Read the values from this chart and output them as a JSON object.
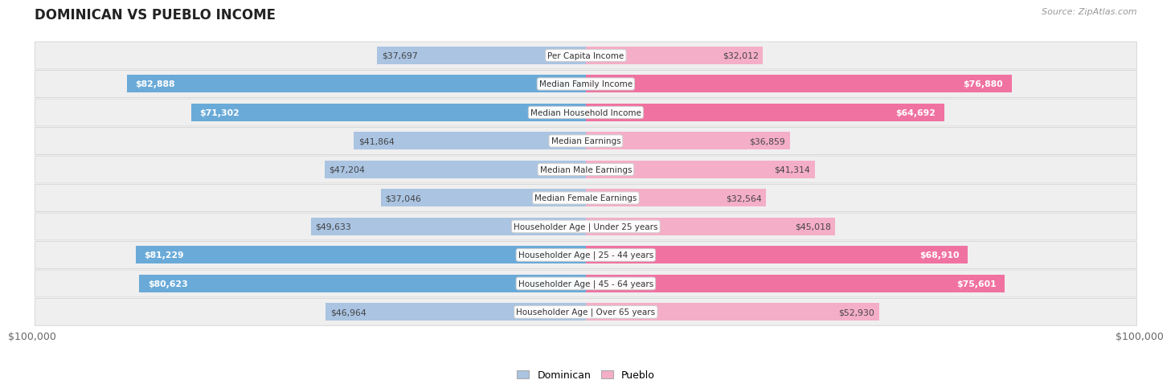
{
  "title": "DOMINICAN VS PUEBLO INCOME",
  "source": "Source: ZipAtlas.com",
  "categories": [
    "Per Capita Income",
    "Median Family Income",
    "Median Household Income",
    "Median Earnings",
    "Median Male Earnings",
    "Median Female Earnings",
    "Householder Age | Under 25 years",
    "Householder Age | 25 - 44 years",
    "Householder Age | 45 - 64 years",
    "Householder Age | Over 65 years"
  ],
  "dominican_values": [
    37697,
    82888,
    71302,
    41864,
    47204,
    37046,
    49633,
    81229,
    80623,
    46964
  ],
  "pueblo_values": [
    32012,
    76880,
    64692,
    36859,
    41314,
    32564,
    45018,
    68910,
    75601,
    52930
  ],
  "dark_rows": [
    1,
    2,
    7,
    8
  ],
  "max_value": 100000,
  "dominican_color_light": "#aac4e2",
  "dominican_color_dark": "#6aaad8",
  "pueblo_color_light": "#f5aec8",
  "pueblo_color_dark": "#f072a0",
  "bar_height": 0.62,
  "row_bg_color": "#efefef",
  "row_border_color": "#d8d8d8",
  "xlabel_left": "$100,000",
  "xlabel_right": "$100,000",
  "legend_dominican": "Dominican",
  "legend_pueblo": "Pueblo",
  "label_fontsize": 7.8,
  "cat_fontsize": 7.5,
  "title_fontsize": 12,
  "source_fontsize": 8
}
